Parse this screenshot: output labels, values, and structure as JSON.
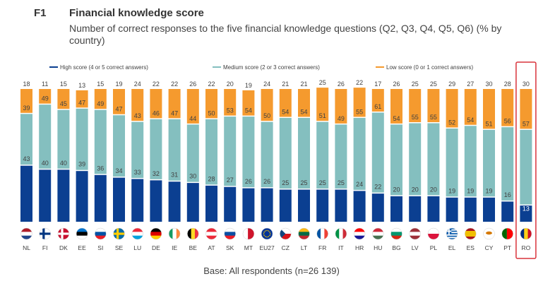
{
  "figure": {
    "number": "F1",
    "title": "Financial knowledge score",
    "subtitle": "Number of correct responses to the five financial knowledge questions (Q2, Q3, Q4, Q5, Q6) (% by country)",
    "footer": "Base: All respondents (n=26 139)"
  },
  "colors": {
    "high": "#0b3f91",
    "medium": "#84bfbf",
    "low": "#f59a2e",
    "highlight": "#d9333b"
  },
  "chart_data": {
    "type": "bar",
    "stacked": true,
    "categories": [
      "NL",
      "FI",
      "DK",
      "EE",
      "SI",
      "SE",
      "LU",
      "DE",
      "IE",
      "BE",
      "AT",
      "SK",
      "MT",
      "EU27",
      "CZ",
      "LT",
      "FR",
      "IT",
      "HR",
      "HU",
      "BG",
      "LV",
      "PL",
      "EL",
      "ES",
      "CY",
      "PT",
      "RO"
    ],
    "series": [
      {
        "name": "High score (4 or 5 correct answers)",
        "values": [
          43,
          40,
          40,
          39,
          36,
          34,
          33,
          32,
          31,
          30,
          28,
          27,
          26,
          26,
          25,
          25,
          25,
          25,
          24,
          22,
          20,
          20,
          20,
          19,
          19,
          19,
          16,
          13
        ]
      },
      {
        "name": "Medium score (2 or 3 correct answers)",
        "values": [
          39,
          49,
          45,
          47,
          49,
          47,
          43,
          46,
          47,
          44,
          50,
          53,
          54,
          50,
          54,
          54,
          51,
          49,
          55,
          61,
          54,
          55,
          55,
          52,
          54,
          51,
          56,
          57
        ]
      },
      {
        "name": "Low score (0 or 1 correct answers)",
        "values": [
          18,
          11,
          15,
          13,
          15,
          19,
          24,
          22,
          22,
          26,
          22,
          20,
          19,
          24,
          21,
          21,
          25,
          26,
          22,
          17,
          26,
          25,
          25,
          29,
          27,
          30,
          28,
          30
        ]
      }
    ],
    "ylim": [
      0,
      100
    ],
    "highlighted_category": "RO",
    "legend_position": "top"
  },
  "flags": [
    {
      "code": "NL",
      "stripes": "h",
      "colors": [
        "#ae1c28",
        "#ffffff",
        "#21468b"
      ]
    },
    {
      "code": "FI",
      "stripes": "nordic",
      "colors": [
        "#ffffff",
        "#003580"
      ]
    },
    {
      "code": "DK",
      "stripes": "nordic",
      "colors": [
        "#c8102e",
        "#ffffff"
      ]
    },
    {
      "code": "EE",
      "stripes": "h",
      "colors": [
        "#0072ce",
        "#000000",
        "#ffffff"
      ]
    },
    {
      "code": "SI",
      "stripes": "h",
      "colors": [
        "#ffffff",
        "#0051a4",
        "#ed1c24"
      ]
    },
    {
      "code": "SE",
      "stripes": "nordic",
      "colors": [
        "#006aa7",
        "#fecc00"
      ]
    },
    {
      "code": "LU",
      "stripes": "h",
      "colors": [
        "#ed2939",
        "#ffffff",
        "#00a1de"
      ]
    },
    {
      "code": "DE",
      "stripes": "h",
      "colors": [
        "#000000",
        "#dd0000",
        "#ffce00"
      ]
    },
    {
      "code": "IE",
      "stripes": "v",
      "colors": [
        "#169b62",
        "#ffffff",
        "#ff883e"
      ]
    },
    {
      "code": "BE",
      "stripes": "v",
      "colors": [
        "#000000",
        "#fdda24",
        "#ef3340"
      ]
    },
    {
      "code": "AT",
      "stripes": "h",
      "colors": [
        "#ed2939",
        "#ffffff",
        "#ed2939"
      ]
    },
    {
      "code": "SK",
      "stripes": "h",
      "colors": [
        "#ffffff",
        "#0b4ea2",
        "#ee1c25"
      ]
    },
    {
      "code": "MT",
      "stripes": "v2",
      "colors": [
        "#ffffff",
        "#cf142b"
      ]
    },
    {
      "code": "EU27",
      "stripes": "eu",
      "colors": [
        "#003399",
        "#ffcc00"
      ]
    },
    {
      "code": "CZ",
      "stripes": "cz",
      "colors": [
        "#ffffff",
        "#d7141a",
        "#11457e"
      ]
    },
    {
      "code": "LT",
      "stripes": "h",
      "colors": [
        "#fdb913",
        "#006a44",
        "#c1272d"
      ]
    },
    {
      "code": "FR",
      "stripes": "v",
      "colors": [
        "#0055a4",
        "#ffffff",
        "#ef4135"
      ]
    },
    {
      "code": "IT",
      "stripes": "v",
      "colors": [
        "#009246",
        "#ffffff",
        "#ce2b37"
      ]
    },
    {
      "code": "HR",
      "stripes": "h",
      "colors": [
        "#ff0000",
        "#ffffff",
        "#171796"
      ]
    },
    {
      "code": "HU",
      "stripes": "h",
      "colors": [
        "#ce2939",
        "#ffffff",
        "#477050"
      ]
    },
    {
      "code": "BG",
      "stripes": "h",
      "colors": [
        "#ffffff",
        "#00966e",
        "#d62612"
      ]
    },
    {
      "code": "LV",
      "stripes": "h",
      "colors": [
        "#9e3039",
        "#ffffff",
        "#9e3039"
      ]
    },
    {
      "code": "PL",
      "stripes": "h2",
      "colors": [
        "#ffffff",
        "#dc143c"
      ]
    },
    {
      "code": "EL",
      "stripes": "gr",
      "colors": [
        "#0d5eaf",
        "#ffffff"
      ]
    },
    {
      "code": "ES",
      "stripes": "es",
      "colors": [
        "#aa151b",
        "#f1bf00"
      ]
    },
    {
      "code": "CY",
      "stripes": "cy",
      "colors": [
        "#ffffff",
        "#d57800"
      ]
    },
    {
      "code": "PT",
      "stripes": "v2",
      "colors": [
        "#006600",
        "#ff0000"
      ]
    },
    {
      "code": "RO",
      "stripes": "v",
      "colors": [
        "#002b7f",
        "#fcd116",
        "#ce1126"
      ]
    }
  ]
}
